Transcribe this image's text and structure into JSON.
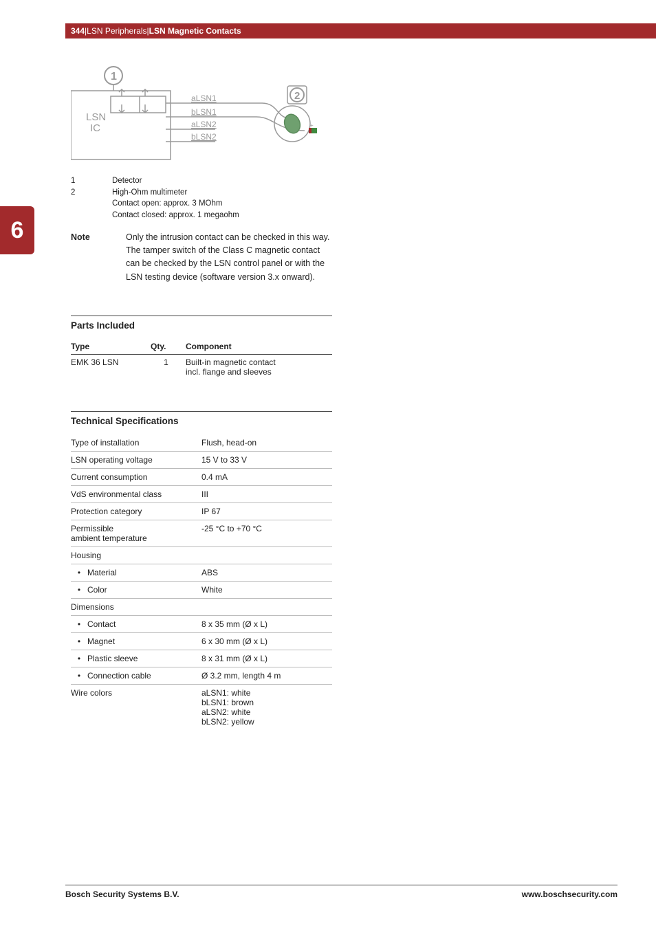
{
  "header": {
    "page_num": "344",
    "sep": " | ",
    "crumb1": "LSN Peripherals",
    "crumb2": "LSN Magnetic Contacts"
  },
  "side_tab": "6",
  "diagram": {
    "box_label": "LSN\nIC",
    "wires": [
      "aLSN1",
      "bLSN1",
      "aLSN2",
      "bLSN2"
    ],
    "callout1": "1",
    "callout2": "2",
    "colors": {
      "stroke": "#9a9a9a",
      "text": "#9a9a9a",
      "accent_green": "#3f8a3f",
      "accent_red": "#a22a2c",
      "wire_green_fill": "#6fa06f"
    }
  },
  "legend": [
    {
      "num": "1",
      "text": "Detector"
    },
    {
      "num": "2",
      "text": "High-Ohm multimeter\nContact open: approx. 3 MOhm\nContact closed: approx. 1 megaohm"
    }
  ],
  "note": {
    "label": "Note",
    "body": "Only the intrusion contact can be checked in this way. The tamper switch of the Class C magnetic contact can be checked by the LSN control panel or with the LSN testing device (software version 3.x onward)."
  },
  "parts_section": {
    "title": "Parts Included",
    "headers": [
      "Type",
      "Qty.",
      "Component"
    ],
    "rows": [
      {
        "type": "EMK 36 LSN",
        "qty": "1",
        "component": "Built-in magnetic contact\nincl. flange and sleeves"
      }
    ]
  },
  "spec_section": {
    "title": "Technical Specifications",
    "rows": [
      {
        "label": "Type of installation",
        "value": "Flush, head-on"
      },
      {
        "label": "LSN operating voltage",
        "value": "15 V to 33 V"
      },
      {
        "label": "Current consumption",
        "value": "0.4 mA"
      },
      {
        "label": "VdS environmental class",
        "value": "III"
      },
      {
        "label": "Protection category",
        "value": "IP 67"
      },
      {
        "label": "Permissible\nambient temperature",
        "value": "-25 °C to +70 °C"
      },
      {
        "label": "Housing",
        "value": "",
        "sub": true
      },
      {
        "label": "Material",
        "value": "ABS",
        "bullet": true
      },
      {
        "label": "Color",
        "value": "White",
        "bullet": true
      },
      {
        "label": "Dimensions",
        "value": "",
        "sub": true
      },
      {
        "label": "Contact",
        "value": "8 x 35 mm (Ø x L)",
        "bullet": true
      },
      {
        "label": "Magnet",
        "value": "6 x 30 mm (Ø x L)",
        "bullet": true
      },
      {
        "label": "Plastic sleeve",
        "value": "8 x 31 mm (Ø x L)",
        "bullet": true
      },
      {
        "label": "Connection cable",
        "value": "Ø 3.2 mm, length 4 m",
        "bullet": true
      },
      {
        "label": "Wire colors",
        "value": "aLSN1: white\nbLSN1: brown\naLSN2: white\nbLSN2: yellow",
        "last": true
      }
    ]
  },
  "footer": {
    "left": "Bosch Security Systems B.V.",
    "right": "www.boschsecurity.com"
  }
}
